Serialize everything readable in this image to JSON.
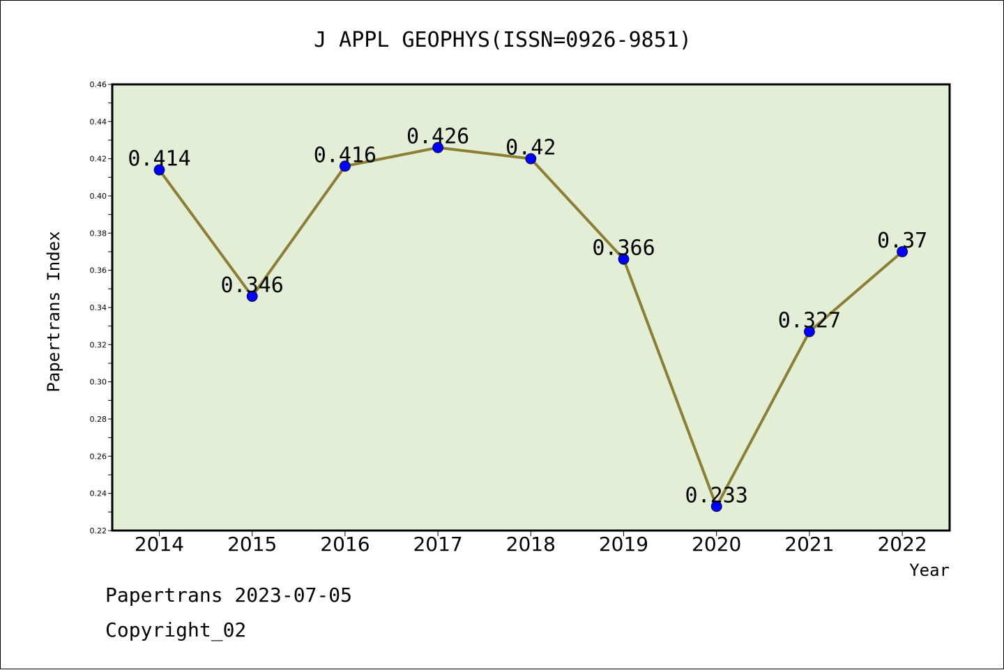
{
  "chart_data": {
    "type": "line",
    "title": "J APPL GEOPHYS(ISSN=0926-9851)",
    "xlabel": "Year",
    "ylabel": "Papertrans Index",
    "categories": [
      "2014",
      "2015",
      "2016",
      "2017",
      "2018",
      "2019",
      "2020",
      "2021",
      "2022"
    ],
    "series": [
      {
        "values": [
          0.414,
          0.346,
          0.416,
          0.426,
          0.42,
          0.366,
          0.233,
          0.327,
          0.37
        ]
      }
    ],
    "data_labels": [
      "0.414",
      "0.346",
      "0.416",
      "0.426",
      "0.42",
      "0.366",
      "0.233",
      "0.327",
      "0.37"
    ],
    "ylim": [
      0.22,
      0.46
    ],
    "yticks": [
      "0.22",
      "0.24",
      "0.26",
      "0.28",
      "0.30",
      "0.32",
      "0.34",
      "0.36",
      "0.38",
      "0.40",
      "0.42",
      "0.44",
      "0.46"
    ],
    "grid": false,
    "colors": {
      "plot_background": "#e2efd6",
      "line": "#8c7e35",
      "marker": "#0000ff"
    }
  },
  "footer": {
    "date_line": "Papertrans 2023-07-05",
    "copyright": "Copyright_02"
  }
}
